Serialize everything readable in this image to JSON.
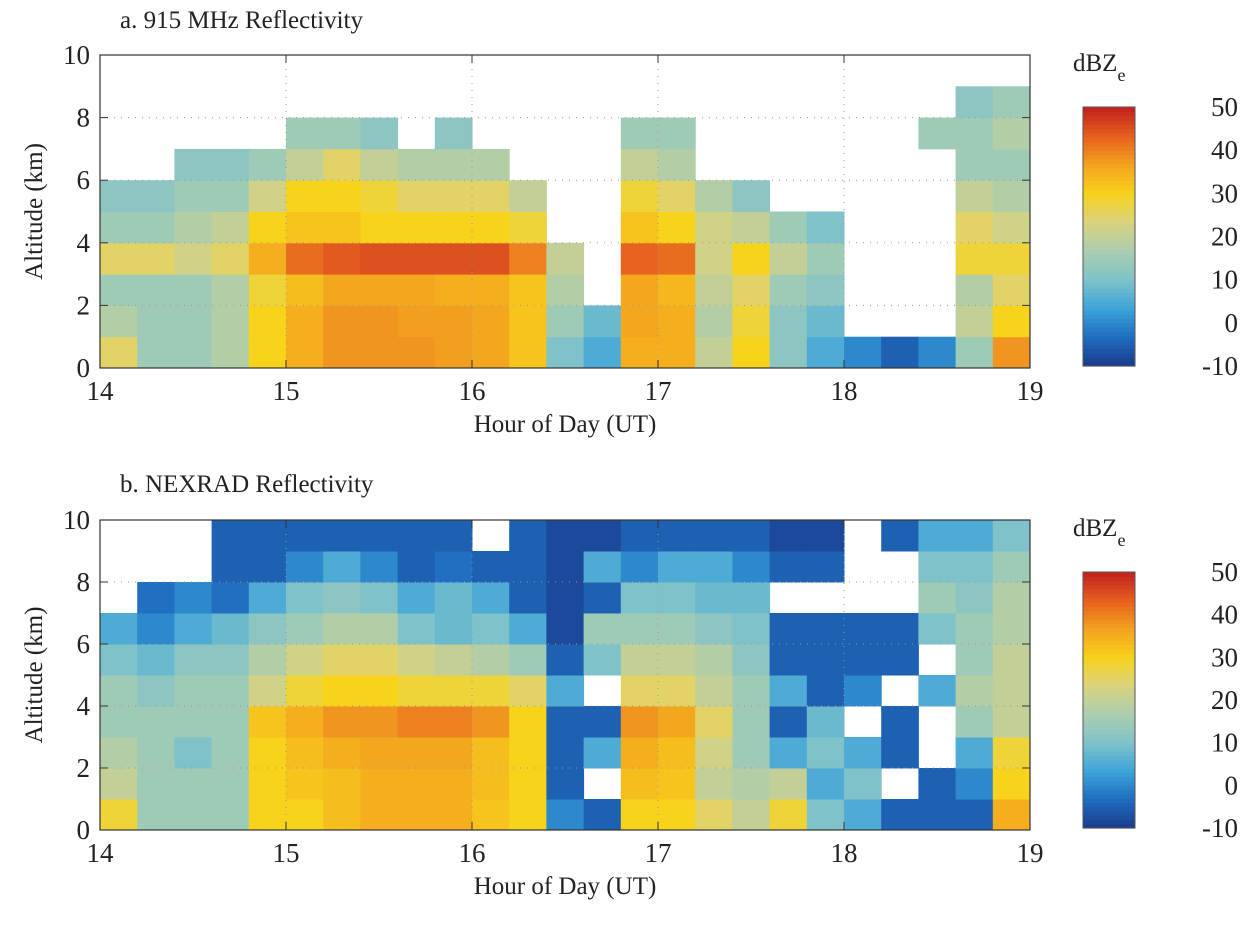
{
  "chart_data": [
    {
      "type": "heatmap",
      "title": "a. 915 MHz Reflectivity",
      "xlabel": "Hour of Day (UT)",
      "ylabel": "Altitude (km)",
      "colorbar_label": "dBZ",
      "colorbar_label_subscript": "e",
      "xlim": [
        14,
        19
      ],
      "xticks": [
        14,
        15,
        16,
        17,
        18,
        19
      ],
      "ylim": [
        0,
        10
      ],
      "yticks": [
        0,
        2,
        4,
        6,
        8,
        10
      ],
      "zlim": [
        -10,
        50
      ],
      "zticks": [
        50,
        40,
        30,
        20,
        10,
        0,
        -10
      ],
      "grid": true,
      "colorscale": [
        "#1b3a8c",
        "#1f6cbf",
        "#3ca3d9",
        "#7fc2c9",
        "#aacdb0",
        "#d9d37e",
        "#f7d31c",
        "#f3a21f",
        "#e6601f",
        "#c21f1f"
      ],
      "x": [
        14.1,
        14.3,
        14.5,
        14.7,
        14.9,
        15.1,
        15.3,
        15.5,
        15.7,
        15.9,
        16.1,
        16.3,
        16.5,
        16.7,
        16.9,
        17.1,
        17.3,
        17.5,
        17.7,
        17.9,
        18.1,
        18.3,
        18.5,
        18.7,
        18.9
      ],
      "y": [
        0.5,
        1.5,
        2.5,
        3.5,
        4.5,
        5.5,
        6.5,
        7.5,
        8.5,
        9.5
      ],
      "values": [
        [
          25,
          18,
          15,
          25,
          15,
          12,
          null,
          null,
          null,
          null
        ],
        [
          15,
          15,
          15,
          25,
          15,
          12,
          null,
          null,
          null,
          null
        ],
        [
          15,
          15,
          15,
          22,
          18,
          15,
          12,
          null,
          null,
          null
        ],
        [
          18,
          18,
          18,
          25,
          20,
          15,
          12,
          null,
          null,
          null
        ],
        [
          30,
          30,
          28,
          35,
          30,
          22,
          15,
          null,
          null,
          null
        ],
        [
          35,
          35,
          33,
          42,
          32,
          30,
          20,
          15,
          null,
          null
        ],
        [
          38,
          38,
          36,
          44,
          32,
          30,
          25,
          15,
          null,
          null
        ],
        [
          38,
          38,
          36,
          45,
          30,
          28,
          20,
          12,
          null,
          null
        ],
        [
          38,
          37,
          36,
          45,
          30,
          25,
          18,
          null,
          null,
          null
        ],
        [
          37,
          37,
          35,
          45,
          30,
          25,
          18,
          12,
          null,
          null
        ],
        [
          36,
          36,
          35,
          45,
          30,
          25,
          18,
          null,
          null,
          null
        ],
        [
          32,
          32,
          32,
          40,
          28,
          20,
          null,
          null,
          null,
          null
        ],
        [
          10,
          15,
          18,
          20,
          null,
          null,
          null,
          null,
          null,
          null
        ],
        [
          5,
          8,
          null,
          null,
          null,
          null,
          null,
          null,
          null,
          null
        ],
        [
          35,
          36,
          36,
          43,
          32,
          28,
          20,
          15,
          null,
          null
        ],
        [
          35,
          35,
          34,
          42,
          30,
          25,
          18,
          15,
          null,
          null
        ],
        [
          20,
          18,
          20,
          22,
          22,
          18,
          null,
          null,
          null,
          null
        ],
        [
          30,
          28,
          25,
          30,
          20,
          12,
          null,
          null,
          null,
          null
        ],
        [
          12,
          12,
          15,
          20,
          15,
          null,
          null,
          null,
          null,
          null
        ],
        [
          5,
          8,
          12,
          15,
          10,
          null,
          null,
          null,
          null,
          null
        ],
        [
          0,
          null,
          null,
          null,
          null,
          null,
          null,
          null,
          null,
          null
        ],
        [
          -5,
          null,
          null,
          null,
          null,
          null,
          null,
          null,
          null,
          null
        ],
        [
          0,
          null,
          null,
          null,
          null,
          null,
          null,
          15,
          null,
          null
        ],
        [
          15,
          20,
          18,
          28,
          25,
          20,
          15,
          15,
          12,
          null
        ],
        [
          38,
          30,
          25,
          28,
          22,
          18,
          15,
          18,
          15,
          null
        ]
      ]
    },
    {
      "type": "heatmap",
      "title": "b. NEXRAD Reflectivity",
      "xlabel": "Hour of Day (UT)",
      "ylabel": "Altitude (km)",
      "colorbar_label": "dBZ",
      "colorbar_label_subscript": "e",
      "xlim": [
        14,
        19
      ],
      "xticks": [
        14,
        15,
        16,
        17,
        18,
        19
      ],
      "ylim": [
        0,
        10
      ],
      "yticks": [
        0,
        2,
        4,
        6,
        8,
        10
      ],
      "zlim": [
        -10,
        50
      ],
      "zticks": [
        50,
        40,
        30,
        20,
        10,
        0,
        -10
      ],
      "grid": true,
      "colorscale": [
        "#1b3a8c",
        "#1f6cbf",
        "#3ca3d9",
        "#7fc2c9",
        "#aacdb0",
        "#d9d37e",
        "#f7d31c",
        "#f3a21f",
        "#e6601f",
        "#c21f1f"
      ],
      "x": [
        14.1,
        14.3,
        14.5,
        14.7,
        14.9,
        15.1,
        15.3,
        15.5,
        15.7,
        15.9,
        16.1,
        16.3,
        16.5,
        16.7,
        16.9,
        17.1,
        17.3,
        17.5,
        17.7,
        17.9,
        18.1,
        18.3,
        18.5,
        18.7,
        18.9
      ],
      "y": [
        0.5,
        1.5,
        2.5,
        3.5,
        4.5,
        5.5,
        6.5,
        7.5,
        8.5,
        9.5
      ],
      "values": [
        [
          28,
          20,
          18,
          15,
          15,
          10,
          5,
          null,
          null,
          null
        ],
        [
          15,
          15,
          15,
          15,
          12,
          8,
          0,
          -3,
          null,
          null
        ],
        [
          15,
          15,
          10,
          15,
          15,
          12,
          5,
          0,
          null,
          null
        ],
        [
          15,
          15,
          15,
          15,
          15,
          12,
          8,
          -3,
          -5,
          -5
        ],
        [
          30,
          30,
          30,
          32,
          22,
          18,
          12,
          5,
          -5,
          -5
        ],
        [
          30,
          32,
          33,
          35,
          28,
          22,
          15,
          10,
          0,
          -5
        ],
        [
          33,
          33,
          35,
          38,
          30,
          25,
          18,
          12,
          5,
          -5
        ],
        [
          35,
          35,
          36,
          38,
          30,
          25,
          18,
          10,
          0,
          -5
        ],
        [
          35,
          35,
          36,
          40,
          28,
          22,
          10,
          5,
          -5,
          -5
        ],
        [
          35,
          35,
          36,
          40,
          28,
          20,
          8,
          8,
          -3,
          -5
        ],
        [
          32,
          33,
          33,
          38,
          28,
          18,
          10,
          5,
          -5,
          null
        ],
        [
          30,
          30,
          30,
          30,
          25,
          15,
          5,
          -5,
          -5,
          -5
        ],
        [
          0,
          -5,
          -5,
          -5,
          5,
          -5,
          -8,
          -8,
          -8,
          -8
        ],
        [
          -5,
          null,
          5,
          -5,
          null,
          10,
          15,
          -5,
          5,
          -8
        ],
        [
          30,
          33,
          35,
          38,
          25,
          20,
          15,
          10,
          0,
          -5
        ],
        [
          30,
          32,
          33,
          36,
          25,
          20,
          15,
          10,
          5,
          -5
        ],
        [
          25,
          20,
          22,
          25,
          20,
          18,
          12,
          8,
          5,
          -5
        ],
        [
          20,
          18,
          15,
          15,
          15,
          12,
          10,
          8,
          0,
          -5
        ],
        [
          28,
          20,
          5,
          -5,
          5,
          -5,
          -5,
          null,
          -5,
          -8
        ],
        [
          10,
          5,
          10,
          8,
          -5,
          -5,
          -5,
          null,
          -5,
          -8
        ],
        [
          5,
          10,
          5,
          null,
          0,
          -5,
          -5,
          null,
          null,
          null
        ],
        [
          -5,
          null,
          -5,
          -5,
          null,
          -5,
          -5,
          null,
          null,
          -5
        ],
        [
          -5,
          -5,
          null,
          null,
          5,
          null,
          10,
          15,
          10,
          5
        ],
        [
          -5,
          0,
          5,
          15,
          18,
          15,
          15,
          12,
          10,
          5
        ],
        [
          35,
          30,
          28,
          20,
          20,
          20,
          18,
          18,
          15,
          10
        ]
      ]
    }
  ]
}
